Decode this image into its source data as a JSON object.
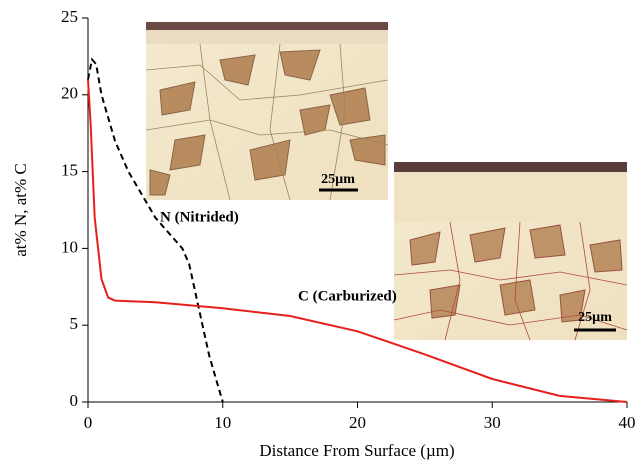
{
  "chart_data": {
    "type": "line",
    "x_label": "Distance From Surface (µm)",
    "y_label": "at% N, at% C",
    "xlim": [
      0,
      40
    ],
    "xticks": [
      0,
      10,
      20,
      30,
      40
    ],
    "ylim": [
      0,
      25
    ],
    "yticks": [
      0,
      5,
      10,
      15,
      20,
      25
    ],
    "series": [
      {
        "name": "N (Nitrided)",
        "color": "#000000",
        "dash": true,
        "x": [
          0,
          0.3,
          0.6,
          1,
          2,
          3,
          4,
          5,
          6,
          7,
          7.5,
          8,
          8.5,
          9,
          9.5,
          10
        ],
        "values": [
          21,
          22.3,
          22,
          20,
          17,
          15,
          13.5,
          12,
          11,
          10,
          9,
          7,
          5,
          3,
          1.5,
          0
        ]
      },
      {
        "name": "C (Carburized)",
        "color": "#e8201c",
        "dash": false,
        "x": [
          0,
          0.2,
          0.5,
          1,
          1.5,
          2,
          5,
          10,
          15,
          20,
          25,
          30,
          35,
          40
        ],
        "values": [
          21,
          18,
          12,
          8,
          6.8,
          6.6,
          6.5,
          6.1,
          5.6,
          4.6,
          3.1,
          1.5,
          0.4,
          0
        ]
      }
    ],
    "insets": [
      {
        "scale_label": "25µm"
      },
      {
        "scale_label": "25µm"
      }
    ]
  }
}
